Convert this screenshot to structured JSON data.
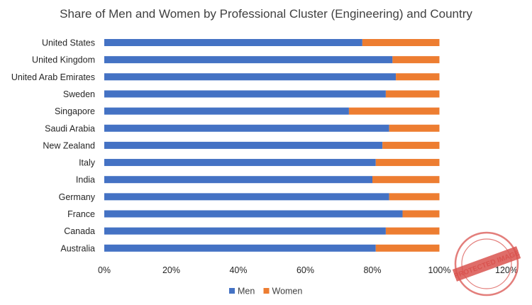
{
  "chart_data": {
    "type": "bar",
    "orientation": "horizontal",
    "stacked": true,
    "title": "Share of Men and Women by Professional Cluster (Engineering) and Country",
    "categories": [
      "United States",
      "United Kingdom",
      "United Arab Emirates",
      "Sweden",
      "Singapore",
      "Saudi Arabia",
      "New Zealand",
      "Italy",
      "India",
      "Germany",
      "France",
      "Canada",
      "Australia"
    ],
    "series": [
      {
        "name": "Men",
        "color": "#4472c4",
        "values": [
          77,
          86,
          87,
          84,
          73,
          85,
          83,
          81,
          80,
          85,
          89,
          84,
          81
        ]
      },
      {
        "name": "Women",
        "color": "#ed7d31",
        "values": [
          23,
          14,
          13,
          16,
          27,
          15,
          17,
          19,
          20,
          15,
          11,
          16,
          19
        ]
      }
    ],
    "xlim": [
      0,
      120
    ],
    "xticks": [
      "0%",
      "20%",
      "40%",
      "60%",
      "80%",
      "100%",
      "120%"
    ],
    "grid": false,
    "legend_position": "bottom"
  },
  "watermark": {
    "text": "PROTECTED IMAGE",
    "color": "#d9534f"
  }
}
